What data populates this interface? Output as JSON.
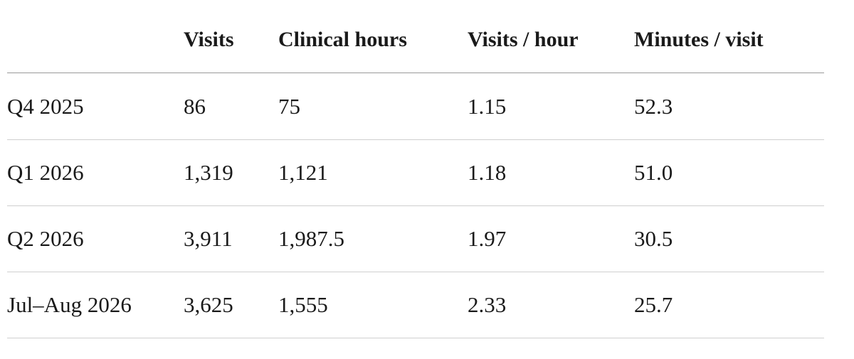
{
  "table": {
    "columns": [
      "Visits",
      "Clinical hours",
      "Visits / hour",
      "Minutes / visit"
    ],
    "rows": [
      [
        "Q4 2025",
        "86",
        "75",
        "1.15",
        "52.3"
      ],
      [
        "Q1 2026",
        "1,319",
        "1,121",
        "1.18",
        "51.0"
      ],
      [
        "Q2 2026",
        "3,911",
        "1,987.5",
        "1.97",
        "30.5"
      ],
      [
        "Jul–Aug 2026",
        "3,625",
        "1,555",
        "2.33",
        "25.7"
      ]
    ]
  }
}
